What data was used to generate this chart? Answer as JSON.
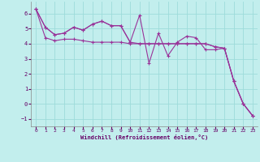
{
  "xlabel": "Windchill (Refroidissement éolien,°C)",
  "background_color": "#c2eeed",
  "grid_color": "#9ddcda",
  "line_color": "#993399",
  "x_values": [
    0,
    1,
    2,
    3,
    4,
    5,
    6,
    7,
    8,
    9,
    10,
    11,
    12,
    13,
    14,
    15,
    16,
    17,
    18,
    19,
    20,
    21,
    22,
    23
  ],
  "series1": [
    6.3,
    5.1,
    4.6,
    4.7,
    5.1,
    4.9,
    5.3,
    5.5,
    5.2,
    5.2,
    4.1,
    5.9,
    2.7,
    4.7,
    3.2,
    4.1,
    4.5,
    4.4,
    3.6,
    3.6,
    3.7,
    1.5,
    0.0,
    -0.8
  ],
  "series2": [
    6.3,
    5.1,
    4.6,
    4.7,
    5.1,
    4.9,
    5.3,
    5.5,
    5.2,
    5.2,
    4.1,
    4.0,
    4.0,
    4.0,
    4.0,
    4.0,
    4.0,
    4.0,
    4.0,
    3.8,
    3.7,
    1.5,
    0.0,
    -0.8
  ],
  "series3": [
    6.3,
    4.4,
    4.2,
    4.3,
    4.3,
    4.2,
    4.1,
    4.1,
    4.1,
    4.1,
    4.0,
    4.0,
    4.0,
    4.0,
    4.0,
    4.0,
    4.0,
    4.0,
    4.0,
    3.8,
    3.7,
    1.5,
    0.0,
    -0.8
  ],
  "xlim": [
    -0.5,
    23.5
  ],
  "ylim": [
    -1.5,
    6.8
  ],
  "yticks": [
    -1,
    0,
    1,
    2,
    3,
    4,
    5,
    6
  ],
  "xticks": [
    0,
    1,
    2,
    3,
    4,
    5,
    6,
    7,
    8,
    9,
    10,
    11,
    12,
    13,
    14,
    15,
    16,
    17,
    18,
    19,
    20,
    21,
    22,
    23
  ],
  "tick_color": "#660066",
  "label_color": "#660066",
  "spine_color": "#888888",
  "linewidth": 0.8,
  "markersize": 2.5,
  "xlabel_fontsize": 5,
  "tick_fontsize": 4.5,
  "ytick_fontsize": 5
}
